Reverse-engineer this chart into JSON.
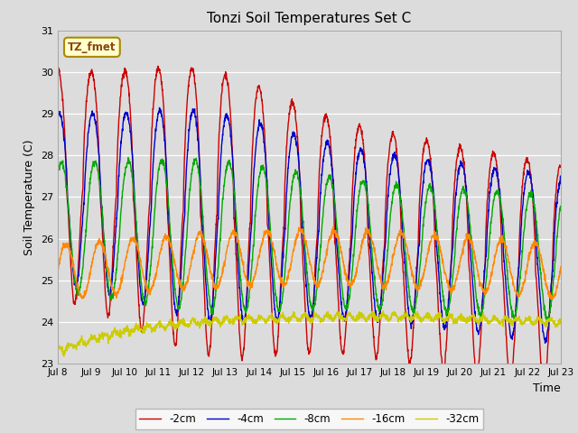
{
  "title": "Tonzi Soil Temperatures Set C",
  "xlabel": "Time",
  "ylabel": "Soil Temperature (C)",
  "xlim": [
    0,
    15
  ],
  "ylim": [
    23.0,
    31.0
  ],
  "yticks": [
    23.0,
    24.0,
    25.0,
    26.0,
    27.0,
    28.0,
    29.0,
    30.0,
    31.0
  ],
  "xtick_labels": [
    "Jul 8",
    "Jul 9",
    "Jul 10",
    "Jul 11",
    "Jul 12",
    "Jul 13",
    "Jul 14",
    "Jul 15",
    "Jul 16",
    "Jul 17",
    "Jul 18",
    "Jul 19",
    "Jul 20",
    "Jul 21",
    "Jul 22",
    "Jul 23"
  ],
  "legend_labels": [
    "-2cm",
    "-4cm",
    "-8cm",
    "-16cm",
    "-32cm"
  ],
  "legend_colors": [
    "#cc0000",
    "#0000cc",
    "#00aa00",
    "#ff8800",
    "#cccc00"
  ],
  "annotation_text": "TZ_fmet",
  "annotation_color": "#8B4513",
  "annotation_bg": "#ffffcc",
  "plot_bg": "#dcdcdc",
  "fig_bg": "#dcdcdc",
  "n_points": 2000
}
